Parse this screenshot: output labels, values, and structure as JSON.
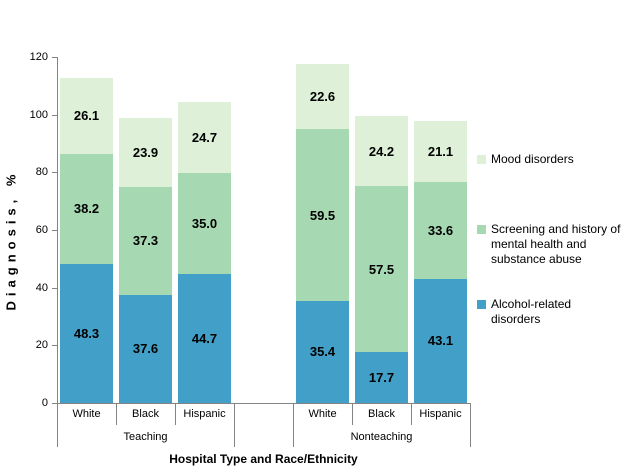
{
  "chart_data": {
    "type": "stacked-bar",
    "title": "",
    "ylabel": "Diagnosis, %",
    "xlabel": "Hospital Type and Race/Ethnicity",
    "ylim": [
      0,
      120
    ],
    "yticks": [
      0,
      20,
      40,
      60,
      80,
      100,
      120
    ],
    "grid": false,
    "legend_position": "right",
    "axis_color": "#848484",
    "text_color": "#000000",
    "background_color": "#ffffff",
    "series": [
      {
        "name": "Alcohol-related disorders",
        "color": "#429FC7"
      },
      {
        "name": "Screening and history of mental health and substance abuse",
        "color": "#A6D9B2"
      },
      {
        "name": "Mood disorders",
        "color": "#DEF1D8"
      }
    ],
    "segment_order_note": "segments arrays are bottom-to-top matching series order",
    "groups": [
      {
        "label": "Teaching",
        "bars": [
          {
            "category": "White",
            "segments": [
              48.3,
              38.2,
              26.1
            ]
          },
          {
            "category": "Black",
            "segments": [
              37.6,
              37.3,
              23.9
            ]
          },
          {
            "category": "Hispanic",
            "segments": [
              44.7,
              35.0,
              24.7
            ]
          }
        ]
      },
      {
        "label": "Nonteaching",
        "bars": [
          {
            "category": "White",
            "segments": [
              35.4,
              59.5,
              22.6
            ]
          },
          {
            "category": "Black",
            "segments": [
              17.7,
              57.5,
              24.2
            ]
          },
          {
            "category": "Hispanic",
            "segments": [
              43.1,
              33.6,
              21.1
            ]
          }
        ]
      }
    ],
    "legend": [
      {
        "label": "Mood disorders",
        "color": "#DEF1D8"
      },
      {
        "label": "Screening and history of mental health and substance abuse",
        "color": "#A6D9B2"
      },
      {
        "label": "Alcohol-related disorders",
        "color": "#429FC7"
      }
    ]
  }
}
